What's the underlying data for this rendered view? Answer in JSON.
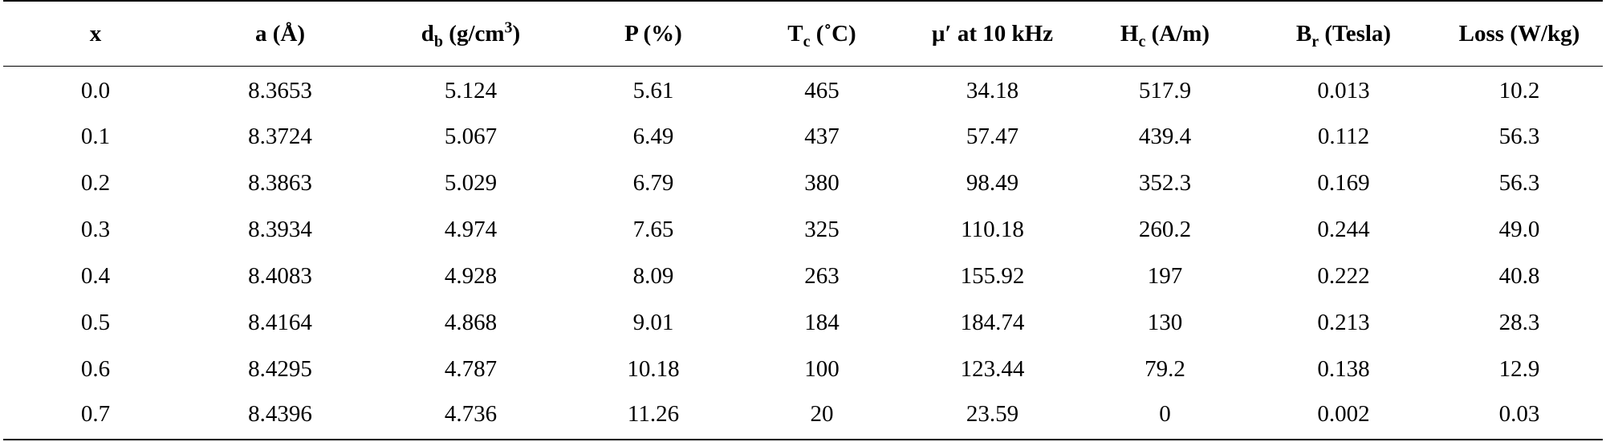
{
  "table": {
    "columns": [
      {
        "key": "x",
        "main": "x",
        "sub": "",
        "sup": "",
        "tail": ""
      },
      {
        "key": "a",
        "main": "a (Å)",
        "sub": "",
        "sup": "",
        "tail": ""
      },
      {
        "key": "db",
        "main": "d",
        "sub": "b",
        "sup_pre": " (g/cm",
        "sup": "3",
        "tail": ")"
      },
      {
        "key": "P",
        "main": "P (%)",
        "sub": "",
        "sup": "",
        "tail": ""
      },
      {
        "key": "Tc",
        "main": "T",
        "sub": "c",
        "tail": " (˚C)"
      },
      {
        "key": "mu",
        "main": "μ′ at 10 kHz",
        "sub": "",
        "sup": "",
        "tail": ""
      },
      {
        "key": "Hc",
        "main": "H",
        "sub": "c",
        "tail": " (A/m)"
      },
      {
        "key": "Br",
        "main": "B",
        "sub": "r",
        "tail": " (Tesla)"
      },
      {
        "key": "Loss",
        "main": "Loss (W/kg)",
        "sub": "",
        "sup": "",
        "tail": ""
      }
    ],
    "rows": [
      [
        "0.0",
        "8.3653",
        "5.124",
        "5.61",
        "465",
        "34.18",
        "517.9",
        "0.013",
        "10.2"
      ],
      [
        "0.1",
        "8.3724",
        "5.067",
        "6.49",
        "437",
        "57.47",
        "439.4",
        "0.112",
        "56.3"
      ],
      [
        "0.2",
        "8.3863",
        "5.029",
        "6.79",
        "380",
        "98.49",
        "352.3",
        "0.169",
        "56.3"
      ],
      [
        "0.3",
        "8.3934",
        "4.974",
        "7.65",
        "325",
        "110.18",
        "260.2",
        "0.244",
        "49.0"
      ],
      [
        "0.4",
        "8.4083",
        "4.928",
        "8.09",
        "263",
        "155.92",
        "197",
        "0.222",
        "40.8"
      ],
      [
        "0.5",
        "8.4164",
        "4.868",
        "9.01",
        "184",
        "184.74",
        "130",
        "0.213",
        "28.3"
      ],
      [
        "0.6",
        "8.4295",
        "4.787",
        "10.18",
        "100",
        "123.44",
        "79.2",
        "0.138",
        "12.9"
      ],
      [
        "0.7",
        "8.4396",
        "4.736",
        "11.26",
        "20",
        "23.59",
        "0",
        "0.002",
        "0.03"
      ]
    ]
  }
}
